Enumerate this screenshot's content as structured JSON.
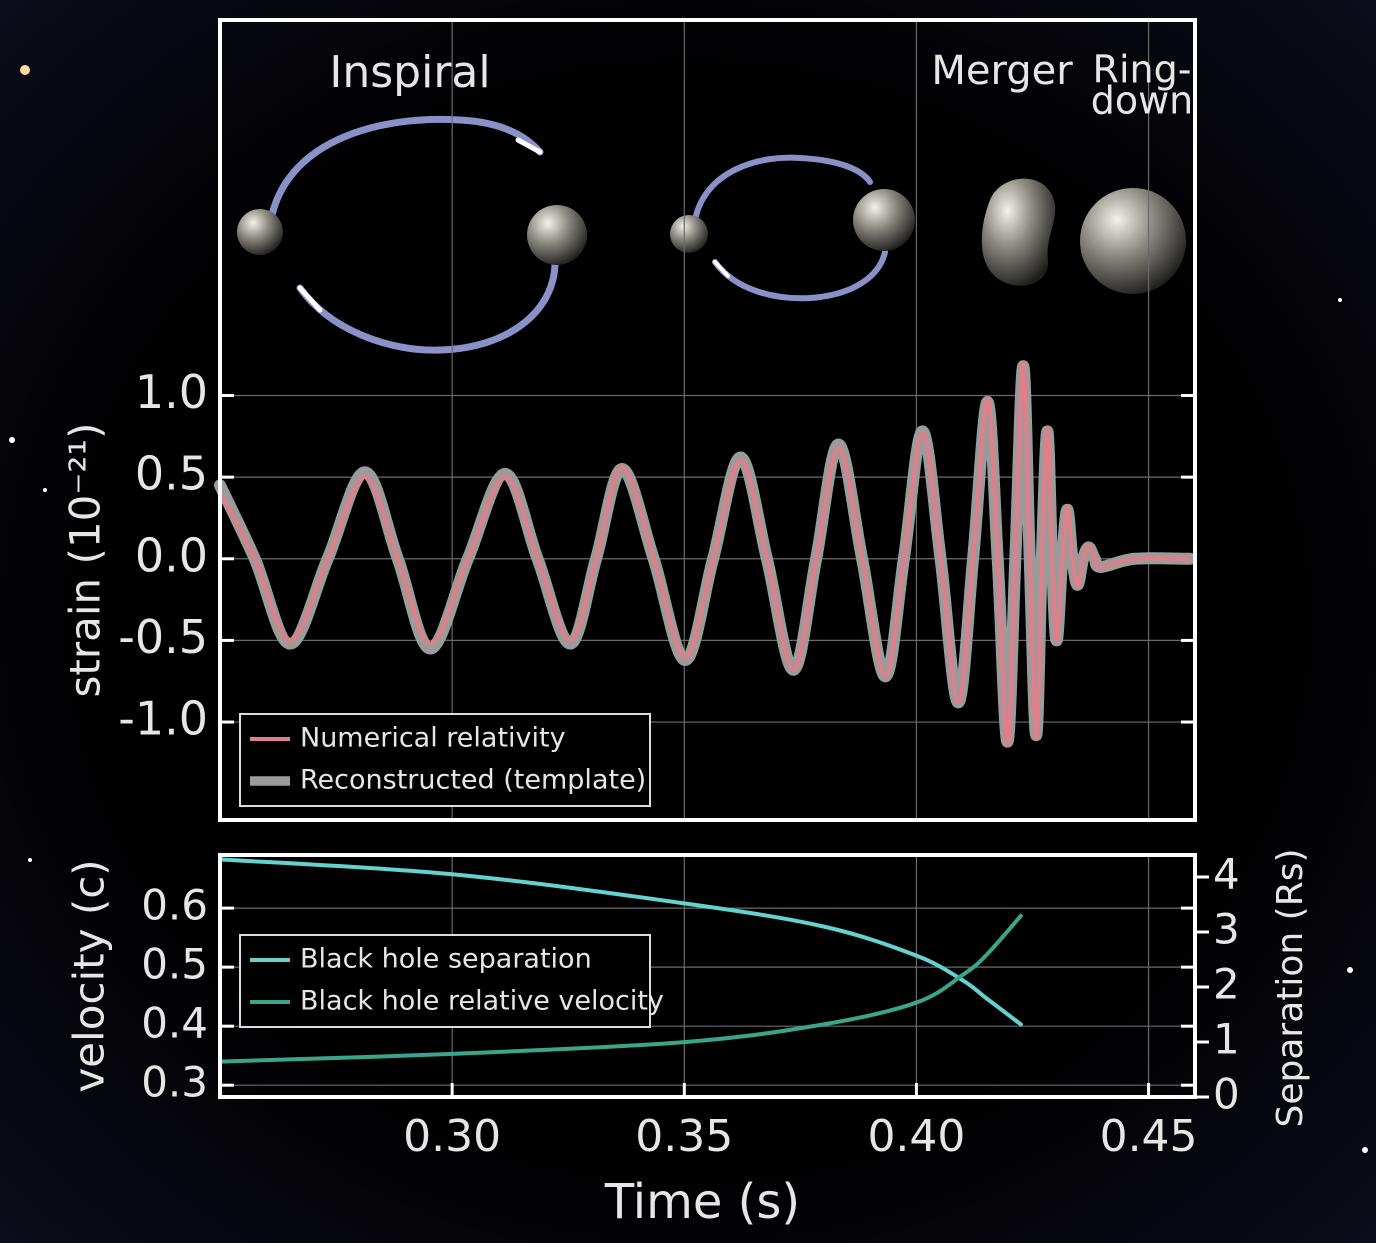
{
  "chart_data": [
    {
      "type": "line",
      "ylabel": "strain (10⁻²¹)",
      "annotations": [
        "Inspiral",
        "Merger",
        "Ring-",
        "down"
      ],
      "xlim": [
        0.25,
        0.46
      ],
      "ylim": [
        -1.6,
        3.3
      ],
      "yticks": [
        {
          "value": -1,
          "label": "-1.0"
        },
        -0.5,
        {
          "value": 0,
          "label": "0.0"
        },
        0.5,
        {
          "value": 1,
          "label": "1.0"
        }
      ],
      "grid": true,
      "legend": "lower left",
      "x": [
        0.25,
        0.2575,
        0.2651,
        0.2732,
        0.2812,
        0.2883,
        0.2953,
        0.3034,
        0.3114,
        0.3184,
        0.3254,
        0.331,
        0.3366,
        0.3434,
        0.3502,
        0.3562,
        0.3621,
        0.3678,
        0.3735,
        0.3784,
        0.3832,
        0.3883,
        0.3933,
        0.3973,
        0.4013,
        0.4052,
        0.409,
        0.4122,
        0.4153,
        0.4175,
        0.4196,
        0.4213,
        0.423,
        0.4244,
        0.4258,
        0.427,
        0.4282,
        0.4292,
        0.4302,
        0.4314,
        0.4325,
        0.4336,
        0.4347,
        0.4359,
        0.4371,
        0.4384,
        0.4397,
        0.447,
        0.459
      ],
      "series": [
        {
          "name": "Reconstructed (template)",
          "color": "#9b9b9b",
          "width": 12,
          "values": [
            0.45,
            0,
            -0.52,
            0,
            0.53,
            0,
            -0.55,
            0,
            0.52,
            0,
            -0.52,
            0,
            0.55,
            0,
            -0.62,
            0,
            0.62,
            0,
            -0.68,
            0,
            0.7,
            0,
            -0.72,
            0,
            0.78,
            0,
            -0.88,
            0,
            0.96,
            0,
            -1.12,
            0,
            1.18,
            0,
            -1.08,
            0,
            0.78,
            0,
            -0.5,
            0,
            0.3,
            0,
            -0.16,
            0,
            0.07,
            0,
            -0.05,
            0,
            0
          ]
        },
        {
          "name": "Numerical relativity",
          "color": "#e07f89",
          "width": 4,
          "values": [
            0.41,
            0,
            -0.5,
            0,
            0.5,
            0,
            -0.52,
            0,
            0.5,
            0,
            -0.5,
            0,
            0.56,
            0,
            -0.6,
            0,
            0.6,
            0,
            -0.68,
            0,
            0.68,
            0,
            -0.72,
            0,
            0.77,
            0,
            -0.88,
            0,
            0.98,
            0,
            -1.14,
            0,
            1.2,
            0,
            -1.1,
            0,
            0.8,
            0,
            -0.5,
            0,
            0.32,
            0,
            -0.17,
            0,
            0.08,
            0,
            -0.05,
            0,
            0
          ]
        }
      ]
    },
    {
      "type": "line",
      "xlabel": "Time (s)",
      "ylabel": "velocity (c)",
      "y2label": "Separation (Rs)",
      "xlim": [
        0.25,
        0.46
      ],
      "xticks": [
        {
          "value": 0.3,
          "label": "0.30"
        },
        0.35,
        {
          "value": 0.4,
          "label": "0.40"
        },
        0.45
      ],
      "ylim": [
        0.28,
        0.69
      ],
      "yticks": [
        0.3,
        0.4,
        0.5,
        0.6
      ],
      "y2lim": [
        0,
        4.4
      ],
      "y2ticks": [
        0,
        1,
        2,
        3,
        4
      ],
      "grid": true,
      "legend": "center left",
      "x": [
        0.25,
        0.3,
        0.35,
        0.38,
        0.4,
        0.41,
        0.415,
        0.4225
      ],
      "series": [
        {
          "name": "Black hole separation",
          "color": "#63d2d0",
          "width": 4,
          "axis": "y2",
          "values": [
            4.32,
            4.05,
            3.52,
            3.1,
            2.57,
            2.12,
            1.8,
            1.32
          ]
        },
        {
          "name": "Black hole relative velocity",
          "color": "#3aa58a",
          "width": 4,
          "values": [
            0.34,
            0.353,
            0.373,
            0.403,
            0.44,
            0.487,
            0.52,
            0.587
          ]
        }
      ]
    }
  ]
}
